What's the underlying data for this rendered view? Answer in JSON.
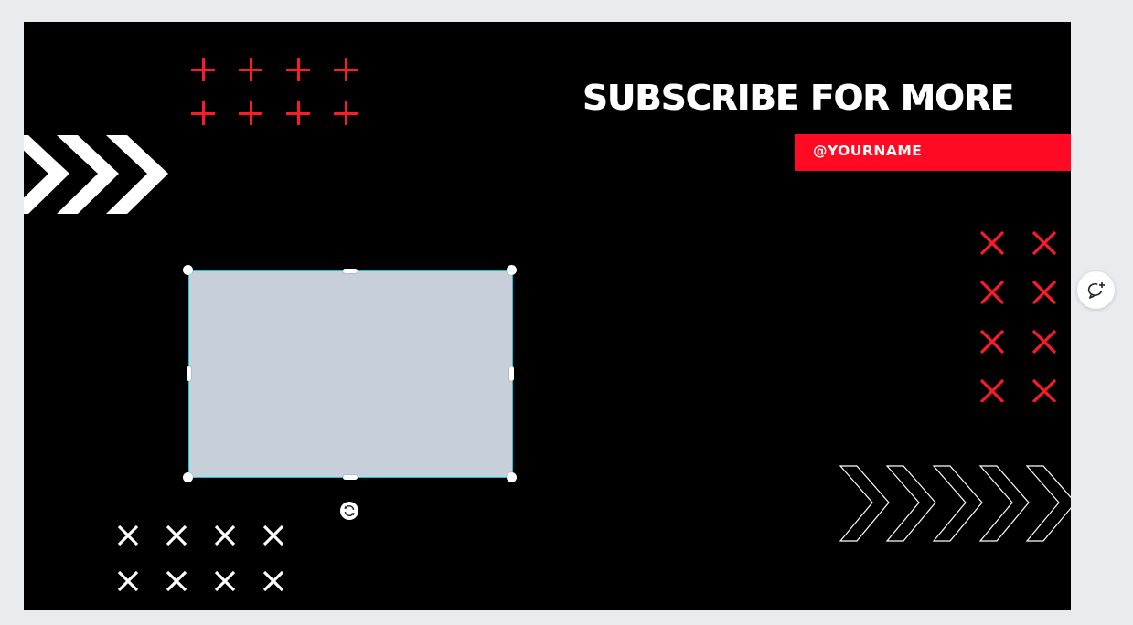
{
  "design": {
    "headline": "SUBSCRIBE FOR MORE",
    "handle": "@YOURNAME",
    "background_color": "#000000",
    "accent_color": "#ff0a22",
    "text_color": "#ffffff"
  },
  "selection": {
    "element": "image placeholder",
    "fill_color": "#c7d0da",
    "outline_color": "#19c3d5"
  },
  "icons": {
    "plus_pattern": "plus-icon",
    "white_chevrons": "chevron-right-icon",
    "outline_chevrons": "chevron-right-outline-icon",
    "red_x_pattern": "x-icon",
    "white_x_pattern": "x-icon",
    "rotate": "rotate-icon",
    "add_comment": "add-comment-icon"
  }
}
